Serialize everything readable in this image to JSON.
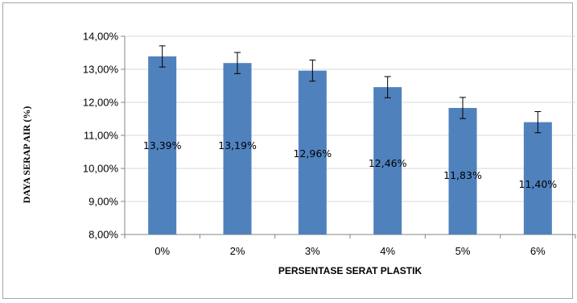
{
  "chart_data": {
    "type": "bar",
    "categories": [
      "0%",
      "2%",
      "3%",
      "4%",
      "5%",
      "6%"
    ],
    "values": [
      13.39,
      13.19,
      12.96,
      12.46,
      11.83,
      11.4
    ],
    "error": [
      0.32,
      0.32,
      0.32,
      0.32,
      0.32,
      0.32
    ],
    "data_labels": [
      "13,39%",
      "13,19%",
      "12,96%",
      "12,46%",
      "11,83%",
      "11,40%"
    ],
    "title": "",
    "xlabel": "PERSENTASE SERAT PLASTIK",
    "ylabel": "DAYA SERAP AIR (%)",
    "ylim": [
      8,
      14
    ],
    "yticks": [
      8,
      9,
      10,
      11,
      12,
      13,
      14
    ],
    "ytick_labels": [
      "8,00%",
      "9,00%",
      "10,00%",
      "11,00%",
      "12,00%",
      "13,00%",
      "14,00%"
    ],
    "grid": true,
    "legend": "none",
    "bar_color": "#4f81bd"
  }
}
